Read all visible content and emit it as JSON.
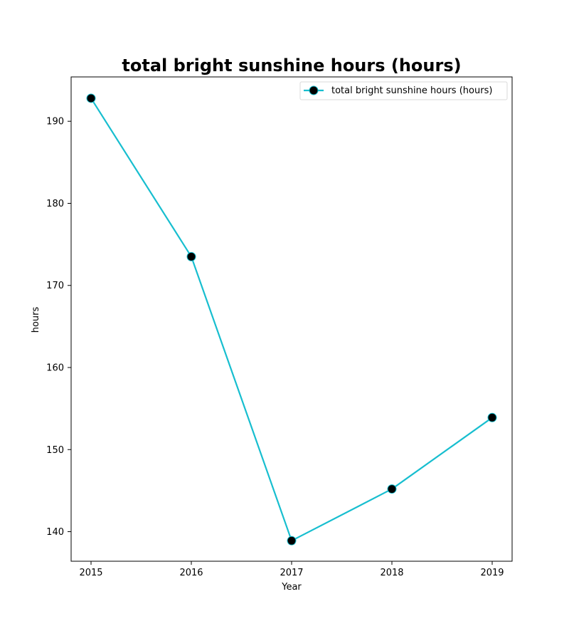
{
  "chart_data": {
    "type": "line",
    "title": "total bright sunshine hours (hours)",
    "xlabel": "Year",
    "ylabel": "hours",
    "x": [
      "2015",
      "2016",
      "2017",
      "2018",
      "2019"
    ],
    "series": [
      {
        "name": "total bright sunshine hours (hours)",
        "values": [
          192.8,
          173.5,
          138.9,
          145.2,
          153.9
        ]
      }
    ],
    "y_ticks": [
      140,
      150,
      160,
      170,
      180,
      190
    ],
    "ylim": [
      136.4,
      195.4
    ],
    "legend_position": "top-right",
    "grid": false,
    "colors": {
      "line": "#17becf",
      "marker_fill": "#000000",
      "marker_edge": "#17becf"
    }
  }
}
